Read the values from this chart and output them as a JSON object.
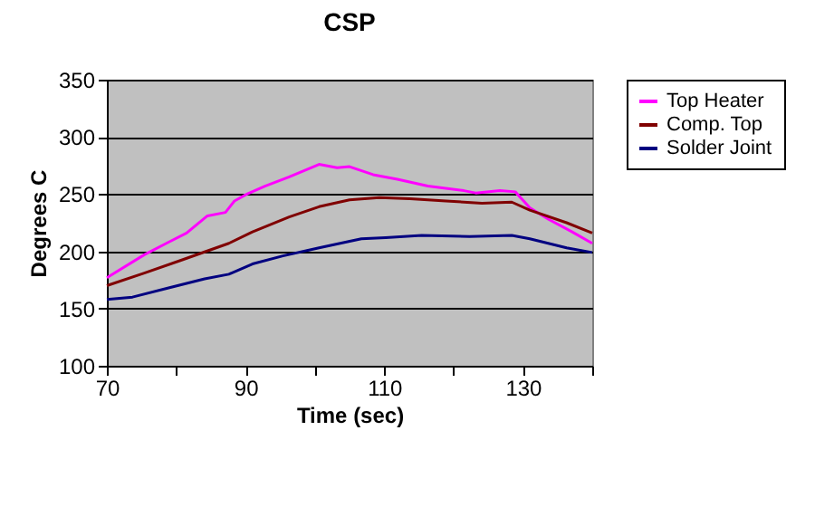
{
  "chart_data": {
    "type": "line",
    "title": "CSP",
    "xlabel": "Time (sec)",
    "ylabel": "Degrees C",
    "xlim": [
      70,
      140
    ],
    "xticks": [
      70,
      {
        "value": 80,
        "label": null
      },
      90,
      {
        "value": 100,
        "label": null
      },
      110,
      {
        "value": 120,
        "label": null
      },
      130,
      {
        "value": 140,
        "label": null
      }
    ],
    "ylim": [
      100,
      350
    ],
    "yticks": [
      100,
      150,
      200,
      250,
      300,
      350
    ],
    "grid": "y",
    "legend": "right",
    "series": [
      {
        "name": "Top Heater",
        "color": "#ff00ff",
        "x": [
          70,
          75.4,
          78.9,
          81.5,
          84.5,
          87.1,
          88.4,
          90.2,
          92.8,
          96.3,
          100.6,
          103.2,
          105,
          108.4,
          111.9,
          116.3,
          121.5,
          123.2,
          126.7,
          128.9,
          131,
          133.7,
          137.1,
          140
        ],
        "values": [
          177,
          197,
          208,
          216,
          231,
          234,
          244,
          250,
          257,
          265,
          276,
          273,
          274,
          267,
          263,
          257,
          253,
          251,
          253,
          252,
          238,
          228,
          217,
          207
        ]
      },
      {
        "name": "Comp. Top",
        "color": "#800000",
        "x": [
          70,
          75.4,
          80.6,
          87.6,
          91,
          96.3,
          100.6,
          105,
          109.3,
          113.7,
          118.9,
          124.1,
          128.4,
          131,
          136.3,
          140
        ],
        "values": [
          170,
          181,
          192,
          207,
          217,
          230,
          239,
          245,
          247,
          246,
          244,
          242,
          243,
          236,
          225,
          216
        ]
      },
      {
        "name": "Solder Joint",
        "color": "#000080",
        "x": [
          70,
          73.7,
          78.9,
          84.1,
          87.6,
          91,
          95.4,
          100.6,
          106.7,
          110.2,
          115.4,
          122.3,
          128.4,
          131,
          136.3,
          140
        ],
        "values": [
          158,
          160,
          168,
          176,
          180,
          189,
          196,
          203,
          211,
          212,
          214,
          213,
          214,
          211,
          203,
          199
        ]
      }
    ]
  }
}
